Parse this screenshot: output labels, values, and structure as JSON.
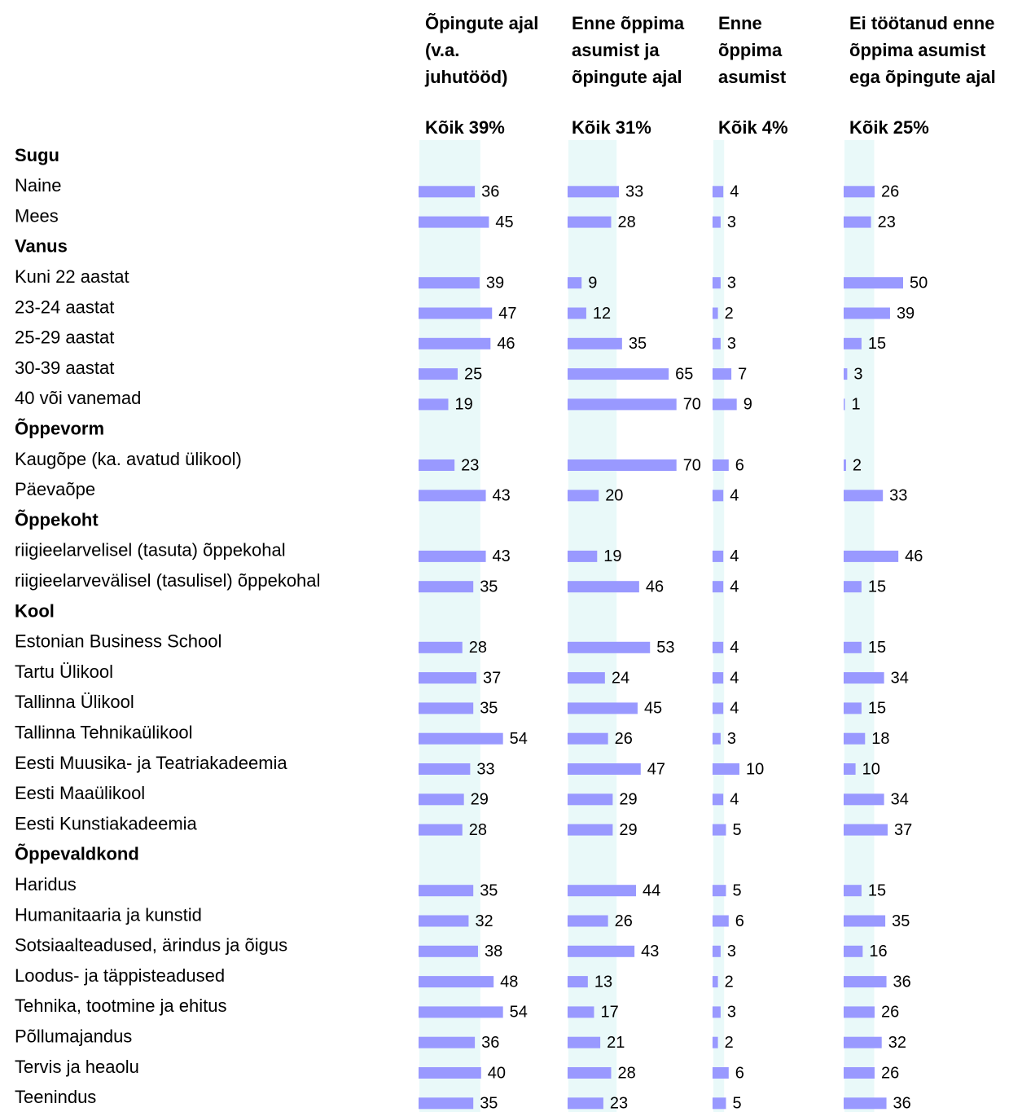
{
  "chart_data": {
    "type": "bar",
    "categories": [
      "Sugu",
      "Naine",
      "Mees",
      "Vanus",
      "Kuni 22 aastat",
      "23-24 aastat",
      "25-29 aastat",
      "30-39 aastat",
      "40 või vanemad",
      "Õppevorm",
      "Kaugõpe (ka. avatud ülikool)",
      "Päevaõpe",
      "Õppekoht",
      "riigieelarvelisel (tasuta) õppekohal",
      "riigieelarvevälisel (tasulisel) õppekohal",
      "Kool",
      "Estonian Business School",
      "Tartu Ülikool",
      "Tallinna Ülikool",
      "Tallinna Tehnikaülikool",
      "Eesti Muusika- ja Teatriakadeemia",
      "Eesti Maaülikool",
      "Eesti Kunstiakadeemia",
      "Õppevaldkond",
      "Haridus",
      "Humanitaaria ja kunstid",
      "Sotsiaalteadused, ärindus ja õigus",
      "Loodus- ja täppisteadused",
      "Tehnika, tootmine ja ehitus",
      "Põllumajandus",
      "Tervis ja heaolu",
      "Teenindus"
    ],
    "band_color": "#e9f9f9",
    "series": [
      {
        "name": "Õpingute ajal\n(v.a.\njuhutööd)",
        "color": "#9999ff",
        "overall": 39,
        "overall_label": "Kõik 39%",
        "values": [
          null,
          36,
          45,
          null,
          39,
          47,
          46,
          25,
          19,
          null,
          23,
          43,
          null,
          43,
          35,
          null,
          28,
          37,
          35,
          54,
          33,
          29,
          28,
          null,
          35,
          32,
          38,
          48,
          54,
          36,
          40,
          35
        ]
      },
      {
        "name": "Enne õppima\nasumist ja\nõpingute ajal",
        "color": "#9999ff",
        "overall": 31,
        "overall_label": "Kõik 31%",
        "values": [
          null,
          33,
          28,
          null,
          9,
          12,
          35,
          65,
          70,
          null,
          70,
          20,
          null,
          19,
          46,
          null,
          53,
          24,
          45,
          26,
          47,
          29,
          29,
          null,
          44,
          26,
          43,
          13,
          17,
          21,
          28,
          23
        ]
      },
      {
        "name": "Enne\nõppima\nasumist",
        "color": "#9999ff",
        "overall": 4,
        "overall_label": "Kõik 4%",
        "values": [
          null,
          4,
          3,
          null,
          3,
          2,
          3,
          7,
          9,
          null,
          6,
          4,
          null,
          4,
          4,
          null,
          4,
          4,
          4,
          3,
          10,
          4,
          5,
          null,
          5,
          6,
          3,
          2,
          3,
          2,
          6,
          5
        ]
      },
      {
        "name": "Ei töötanud enne\nõppima asumist\nega õpingute ajal",
        "color": "#9999ff",
        "overall": 25,
        "overall_label": "Kõik 25%",
        "values": [
          null,
          26,
          23,
          null,
          50,
          39,
          15,
          3,
          1,
          null,
          2,
          33,
          null,
          46,
          15,
          null,
          15,
          34,
          15,
          18,
          10,
          34,
          37,
          null,
          15,
          35,
          16,
          36,
          26,
          32,
          26,
          36
        ]
      }
    ]
  }
}
